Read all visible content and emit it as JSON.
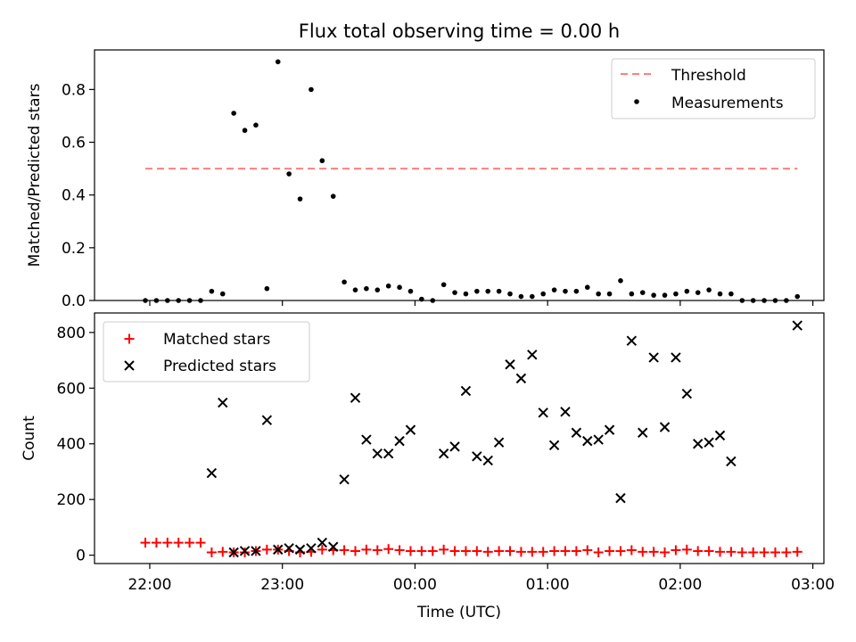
{
  "figure": {
    "title": "Flux total observing time = 0.00 h",
    "xlabel": "Time (UTC)"
  },
  "colors": {
    "threshold": "#ff7f7f",
    "measurements": "#000000",
    "matched": "#ff0000",
    "predicted": "#000000"
  },
  "chart_data": [
    {
      "type": "scatter",
      "ylabel": "Matched/Predicted stars",
      "ylim": [
        0,
        0.95
      ],
      "yticks": [
        0,
        0.2,
        0.4,
        0.6,
        0.8
      ],
      "ytick_labels": [
        "0.0",
        "0.2",
        "0.4",
        "0.6",
        "0.8"
      ],
      "xlim": [
        "21:35",
        "03:05"
      ],
      "xtick_labels": [
        "22:00",
        "23:00",
        "00:00",
        "01:00",
        "02:00",
        "03:00"
      ],
      "legend_position": "upper-right",
      "series": [
        {
          "name": "Threshold",
          "style": "dashed-line",
          "x": [
            "21:58",
            "02:53"
          ],
          "y": [
            0.5,
            0.5
          ]
        },
        {
          "name": "Measurements",
          "style": "dot",
          "x": [
            "21:58",
            "22:03",
            "22:08",
            "22:13",
            "22:18",
            "22:23",
            "22:28",
            "22:33",
            "22:38",
            "22:43",
            "22:48",
            "22:53",
            "22:58",
            "23:03",
            "23:08",
            "23:13",
            "23:18",
            "23:23",
            "23:28",
            "23:33",
            "23:38",
            "23:43",
            "23:48",
            "23:53",
            "23:58",
            "00:03",
            "00:08",
            "00:13",
            "00:18",
            "00:23",
            "00:28",
            "00:33",
            "00:38",
            "00:43",
            "00:48",
            "00:53",
            "00:58",
            "01:03",
            "01:08",
            "01:13",
            "01:18",
            "01:23",
            "01:28",
            "01:33",
            "01:38",
            "01:43",
            "01:48",
            "01:53",
            "01:58",
            "02:03",
            "02:08",
            "02:13",
            "02:18",
            "02:23",
            "02:28",
            "02:33",
            "02:38",
            "02:43",
            "02:48",
            "02:53"
          ],
          "y": [
            0.0,
            0.0,
            0.0,
            0.0,
            0.0,
            0.0,
            0.035,
            0.025,
            0.71,
            0.645,
            0.665,
            0.045,
            0.905,
            0.48,
            0.385,
            0.8,
            0.53,
            0.395,
            0.07,
            0.04,
            0.045,
            0.04,
            0.055,
            0.05,
            0.035,
            0.005,
            0.0,
            0.06,
            0.03,
            0.025,
            0.035,
            0.035,
            0.035,
            0.025,
            0.015,
            0.015,
            0.025,
            0.04,
            0.035,
            0.035,
            0.05,
            0.025,
            0.025,
            0.075,
            0.025,
            0.03,
            0.02,
            0.02,
            0.025,
            0.035,
            0.03,
            0.04,
            0.025,
            0.025,
            0.0,
            0.0,
            0.0,
            0.0,
            0.0,
            0.015
          ]
        }
      ]
    },
    {
      "type": "scatter",
      "ylabel": "Count",
      "ylim": [
        -30,
        870
      ],
      "yticks": [
        0,
        200,
        400,
        600,
        800
      ],
      "ytick_labels": [
        "0",
        "200",
        "400",
        "600",
        "800"
      ],
      "xlim": [
        "21:35",
        "03:05"
      ],
      "xtick_labels": [
        "22:00",
        "23:00",
        "00:00",
        "01:00",
        "02:00",
        "03:00"
      ],
      "legend_position": "upper-left",
      "series": [
        {
          "name": "Matched stars",
          "marker": "+",
          "x": [
            "21:58",
            "22:03",
            "22:08",
            "22:13",
            "22:18",
            "22:23",
            "22:28",
            "22:33",
            "22:38",
            "22:43",
            "22:48",
            "22:53",
            "22:58",
            "23:03",
            "23:08",
            "23:13",
            "23:18",
            "23:23",
            "23:28",
            "23:33",
            "23:38",
            "23:43",
            "23:48",
            "23:53",
            "23:58",
            "00:03",
            "00:08",
            "00:13",
            "00:18",
            "00:23",
            "00:28",
            "00:33",
            "00:38",
            "00:43",
            "00:48",
            "00:53",
            "00:58",
            "01:03",
            "01:08",
            "01:13",
            "01:18",
            "01:23",
            "01:28",
            "01:33",
            "01:38",
            "01:43",
            "01:48",
            "01:53",
            "01:58",
            "02:03",
            "02:08",
            "02:13",
            "02:18",
            "02:23",
            "02:28",
            "02:33",
            "02:38",
            "02:43",
            "02:48",
            "02:53"
          ],
          "y": [
            45,
            45,
            45,
            45,
            45,
            45,
            10,
            12,
            10,
            10,
            15,
            20,
            20,
            15,
            10,
            12,
            20,
            18,
            18,
            15,
            20,
            18,
            22,
            18,
            15,
            15,
            15,
            20,
            15,
            15,
            15,
            12,
            15,
            15,
            12,
            12,
            12,
            15,
            15,
            15,
            18,
            10,
            15,
            15,
            18,
            12,
            12,
            10,
            18,
            20,
            15,
            15,
            12,
            12,
            10,
            10,
            10,
            10,
            10,
            12
          ]
        },
        {
          "name": "Predicted stars",
          "marker": "x",
          "x": [
            "22:28",
            "22:33",
            "22:38",
            "22:43",
            "22:48",
            "22:53",
            "22:58",
            "23:03",
            "23:08",
            "23:13",
            "23:18",
            "23:23",
            "23:28",
            "23:33",
            "23:38",
            "23:43",
            "23:48",
            "23:53",
            "23:58",
            "00:13",
            "00:18",
            "00:23",
            "00:28",
            "00:33",
            "00:38",
            "00:43",
            "00:48",
            "00:53",
            "00:58",
            "01:03",
            "01:08",
            "01:13",
            "01:18",
            "01:23",
            "01:28",
            "01:33",
            "01:38",
            "01:43",
            "01:48",
            "01:53",
            "01:58",
            "02:03",
            "02:08",
            "02:13",
            "02:18",
            "02:23",
            "02:53"
          ],
          "y": [
            295,
            548,
            10,
            15,
            15,
            485,
            20,
            25,
            20,
            25,
            45,
            30,
            272,
            565,
            415,
            365,
            365,
            410,
            450,
            365,
            390,
            590,
            355,
            340,
            405,
            685,
            635,
            720,
            512,
            395,
            515,
            440,
            410,
            415,
            450,
            205,
            770,
            440,
            710,
            460,
            710,
            580,
            400,
            405,
            430,
            337,
            825
          ]
        }
      ]
    }
  ]
}
